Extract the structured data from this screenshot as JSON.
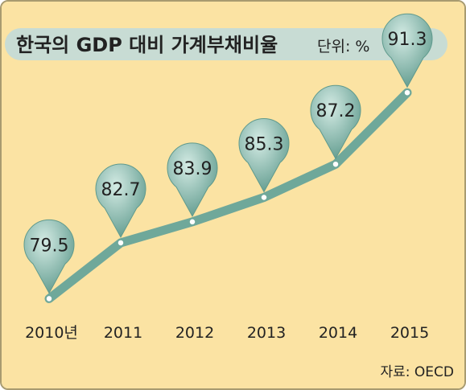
{
  "chart_data": {
    "type": "line",
    "title": "한국의 GDP 대비 가계부채비율",
    "unit_label": "단위: %",
    "source": "자료: OECD",
    "categories": [
      "2010년",
      "2011",
      "2012",
      "2013",
      "2014",
      "2015"
    ],
    "series": [
      {
        "values": [
          79.5,
          82.7,
          83.9,
          85.3,
          87.2,
          91.3
        ],
        "value_labels": [
          "79.5",
          "82.7",
          "83.9",
          "85.3",
          "87.2",
          "91.3"
        ]
      }
    ],
    "ylim": [
      78,
      92
    ],
    "grid": false,
    "legend": "none",
    "colors": {
      "background": "#fbe3a3",
      "line": "#6fa89a",
      "marker_fill": "#ffffff",
      "title_bar": "#c8dcd4",
      "pin_fill_light": "#d4ebe4",
      "pin_fill_dark": "#5f9a8d",
      "text": "#222222"
    }
  }
}
